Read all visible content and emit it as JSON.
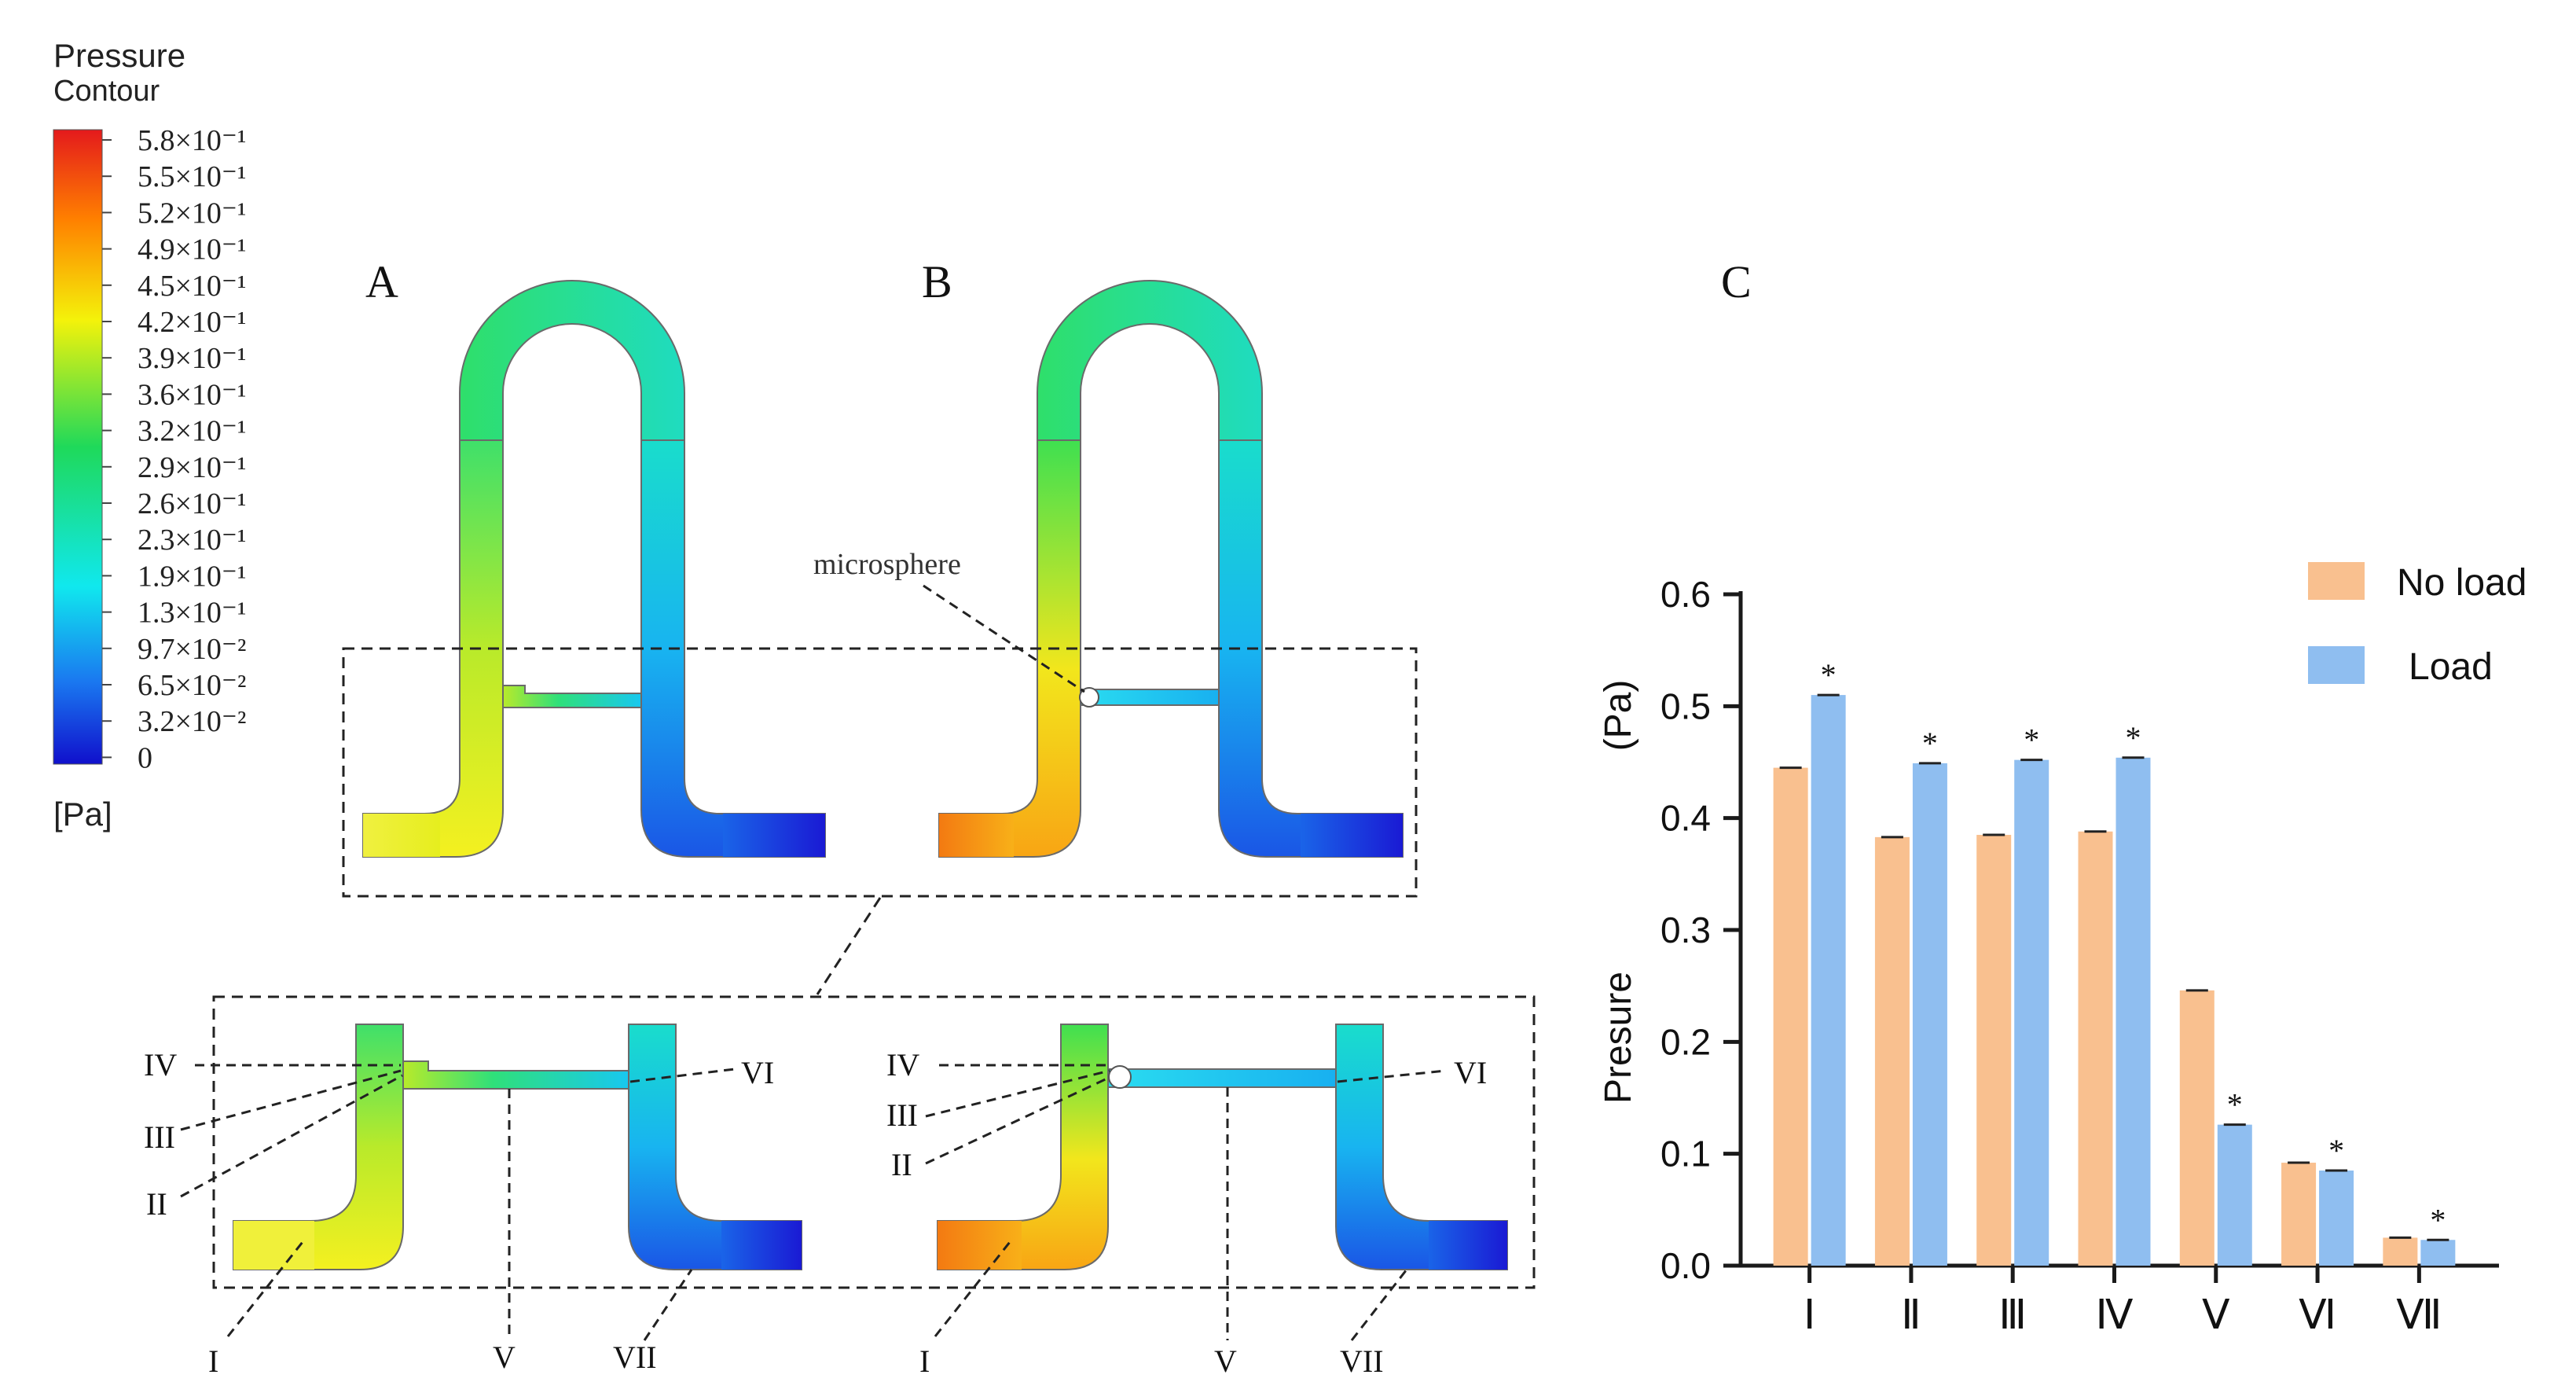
{
  "legend": {
    "title": "Pressure",
    "subtitle": "Contour",
    "unit": "[Pa]",
    "labels": [
      "5.8×10⁻¹",
      "5.5×10⁻¹",
      "5.2×10⁻¹",
      "4.9×10⁻¹",
      "4.5×10⁻¹",
      "4.2×10⁻¹",
      "3.9×10⁻¹",
      "3.6×10⁻¹",
      "3.2×10⁻¹",
      "2.9×10⁻¹",
      "2.6×10⁻¹",
      "2.3×10⁻¹",
      "1.9×10⁻¹",
      "1.3×10⁻¹",
      "9.7×10⁻²",
      "6.5×10⁻²",
      "3.2×10⁻²",
      "0"
    ]
  },
  "panels": {
    "a_label": "A",
    "b_label": "B",
    "c_label": "C",
    "microsphere_label": "microsphere",
    "left_zoom_labels": {
      "iv": "IV",
      "iii": "III",
      "ii": "II",
      "i": "I",
      "v": "V",
      "vi": "VI",
      "vii": "VII"
    },
    "right_zoom_labels": {
      "iv": "IV",
      "iii": "III",
      "ii": "II",
      "i": "I",
      "v": "V",
      "vi": "VI",
      "vii": "VII"
    }
  },
  "colors": {
    "no_load": "#f9c08f",
    "load": "#8fbef0",
    "axis": "#1a1a1a"
  },
  "chart_data": {
    "type": "bar",
    "title": "",
    "xlabel": "",
    "ylabel": "Presure",
    "ylabel_unit": "(Pa)",
    "categories": [
      "Ⅰ",
      "Ⅱ",
      "Ⅲ",
      "Ⅳ",
      "Ⅴ",
      "Ⅵ",
      "Ⅶ"
    ],
    "ylim": [
      0,
      0.6
    ],
    "yticks": [
      "0.0",
      "0.1",
      "0.2",
      "0.3",
      "0.4",
      "0.5",
      "0.6"
    ],
    "legend_position": "top-right",
    "significance_marker": "*",
    "series": [
      {
        "name": "No load",
        "values": [
          0.445,
          0.383,
          0.385,
          0.388,
          0.246,
          0.092,
          0.025
        ]
      },
      {
        "name": "Load",
        "values": [
          0.51,
          0.449,
          0.452,
          0.454,
          0.126,
          0.085,
          0.023
        ]
      }
    ]
  }
}
